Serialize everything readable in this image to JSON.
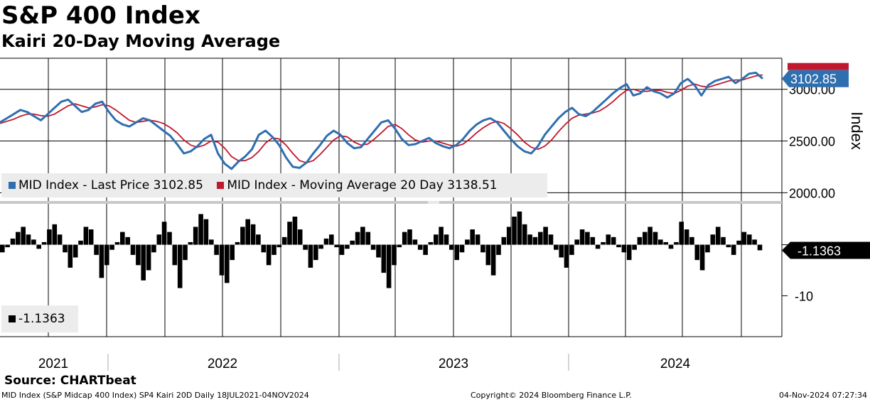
{
  "header": {
    "title": "S&P 400 Index",
    "subtitle": "Kairi 20-Day Moving Average"
  },
  "source": "Source: CHARTbeat",
  "footer": {
    "left": "MID Index (S&P Midcap 400 Index) SP4 Kairi 20D  Daily 18JUL2021-04NOV2024",
    "center": "Copyright© 2024 Bloomberg Finance L.P.",
    "right": "04-Nov-2024 07:27:34"
  },
  "colors": {
    "price": "#2e6fb0",
    "ma": "#c0182e",
    "bars": "#000000",
    "label_box": "#000000"
  },
  "chart_data": [
    {
      "type": "line",
      "title": "S&P 400 Index",
      "ylabel": "Index",
      "ylim": [
        1920,
        3300
      ],
      "y_ticks": [
        "3000.00",
        "2500.00",
        "2000.00"
      ],
      "y_tick_values": [
        3000,
        2500,
        2000
      ],
      "x_labels": [
        "2021",
        "2022",
        "2023",
        "2024"
      ],
      "last_price_label": "3102.85",
      "series": [
        {
          "name": "MID Index - Last Price",
          "legend": "MID Index - Last Price 3102.85",
          "color": "#2e6fb0",
          "values": [
            2680,
            2720,
            2760,
            2800,
            2780,
            2740,
            2700,
            2760,
            2820,
            2880,
            2900,
            2840,
            2780,
            2800,
            2860,
            2880,
            2780,
            2700,
            2660,
            2640,
            2680,
            2720,
            2700,
            2650,
            2600,
            2550,
            2470,
            2380,
            2400,
            2450,
            2520,
            2560,
            2380,
            2280,
            2230,
            2300,
            2350,
            2420,
            2560,
            2600,
            2540,
            2460,
            2340,
            2250,
            2240,
            2290,
            2380,
            2460,
            2550,
            2600,
            2560,
            2480,
            2430,
            2440,
            2520,
            2600,
            2680,
            2700,
            2620,
            2520,
            2460,
            2470,
            2500,
            2530,
            2480,
            2450,
            2430,
            2460,
            2520,
            2600,
            2660,
            2700,
            2720,
            2680,
            2600,
            2520,
            2450,
            2400,
            2380,
            2450,
            2560,
            2640,
            2720,
            2780,
            2820,
            2760,
            2740,
            2780,
            2840,
            2900,
            2960,
            3010,
            3050,
            2940,
            2960,
            3020,
            2980,
            2960,
            2920,
            2960,
            3060,
            3100,
            3040,
            2940,
            3040,
            3080,
            3100,
            3120,
            3060,
            3100,
            3150,
            3160,
            3103
          ]
        },
        {
          "name": "MID Index - Moving Average 20 Day",
          "legend": "MID Index - Moving Average 20 Day 3138.51",
          "color": "#c0182e",
          "values": [
            2670,
            2690,
            2710,
            2740,
            2760,
            2760,
            2745,
            2740,
            2760,
            2800,
            2840,
            2860,
            2840,
            2820,
            2830,
            2850,
            2840,
            2800,
            2750,
            2700,
            2680,
            2690,
            2700,
            2690,
            2670,
            2630,
            2580,
            2510,
            2460,
            2440,
            2460,
            2500,
            2490,
            2430,
            2350,
            2310,
            2310,
            2340,
            2400,
            2480,
            2530,
            2520,
            2460,
            2380,
            2310,
            2290,
            2310,
            2370,
            2440,
            2510,
            2550,
            2540,
            2490,
            2460,
            2470,
            2520,
            2580,
            2640,
            2660,
            2620,
            2560,
            2510,
            2490,
            2500,
            2500,
            2480,
            2460,
            2450,
            2470,
            2520,
            2580,
            2630,
            2670,
            2690,
            2670,
            2620,
            2560,
            2490,
            2440,
            2420,
            2450,
            2510,
            2590,
            2660,
            2720,
            2750,
            2760,
            2770,
            2790,
            2830,
            2880,
            2940,
            2990,
            3000,
            2980,
            2980,
            2990,
            2990,
            2970,
            2960,
            2990,
            3030,
            3050,
            3030,
            3020,
            3040,
            3060,
            3080,
            3090,
            3090,
            3110,
            3130,
            3139
          ]
        }
      ]
    },
    {
      "type": "bar",
      "title": "Kairi 20-Day Moving Average",
      "ylim": [
        -18,
        8
      ],
      "y_ticks": [
        "-10"
      ],
      "y_tick_values": [
        -10
      ],
      "last_value_label": "-1.1363",
      "series": [
        {
          "name": "Kairi 20D",
          "legend": "-1.1363",
          "color": "#000000",
          "values": [
            -1.5,
            -0.5,
            1.2,
            2.5,
            3.5,
            2.0,
            1.0,
            -0.8,
            0.5,
            3.0,
            4.0,
            2.0,
            -1.5,
            -4.5,
            -2.5,
            0.8,
            3.5,
            3.0,
            -2.0,
            -6.5,
            -4.0,
            -1.0,
            0.5,
            2.5,
            1.5,
            -2.0,
            -4.0,
            -7.0,
            -5.0,
            -1.5,
            2.0,
            4.5,
            2.5,
            -4.0,
            -8.5,
            -3.0,
            0.5,
            3.5,
            6.0,
            5.0,
            1.0,
            -2.0,
            -6.0,
            -7.5,
            -3.0,
            0.5,
            3.5,
            5.0,
            4.0,
            2.0,
            -1.5,
            -4.0,
            -2.0,
            -0.5,
            1.5,
            4.5,
            5.5,
            3.0,
            -1.0,
            -4.5,
            -3.0,
            -0.8,
            1.2,
            2.0,
            -0.5,
            -2.0,
            -0.8,
            0.8,
            2.5,
            3.5,
            2.5,
            -1.0,
            -2.5,
            -5.5,
            -8.5,
            -4.0,
            -0.5,
            2.5,
            3.0,
            1.0,
            -1.0,
            -2.0,
            0.5,
            2.0,
            3.5,
            2.0,
            -1.0,
            -3.0,
            -1.5,
            1.0,
            3.0,
            2.0,
            -1.5,
            -4.0,
            -6.0,
            -2.0,
            1.5,
            3.5,
            5.5,
            6.5,
            4.0,
            2.0,
            1.5,
            2.5,
            3.5,
            2.0,
            -1.0,
            -2.5,
            -4.5,
            -2.0,
            1.0,
            3.0,
            2.5,
            1.5,
            -0.8,
            0.5,
            2.0,
            1.5,
            -0.5,
            -1.5,
            -3.0,
            -1.0,
            1.5,
            2.5,
            3.5,
            2.5,
            1.0,
            0.5,
            -0.8,
            0.5,
            4.5,
            3.0,
            1.5,
            -3.0,
            -5.0,
            -1.5,
            2.0,
            3.5,
            1.5,
            -0.5,
            -2.0,
            0.8,
            2.5,
            2.0,
            1.0,
            -1.1
          ]
        }
      ]
    }
  ]
}
